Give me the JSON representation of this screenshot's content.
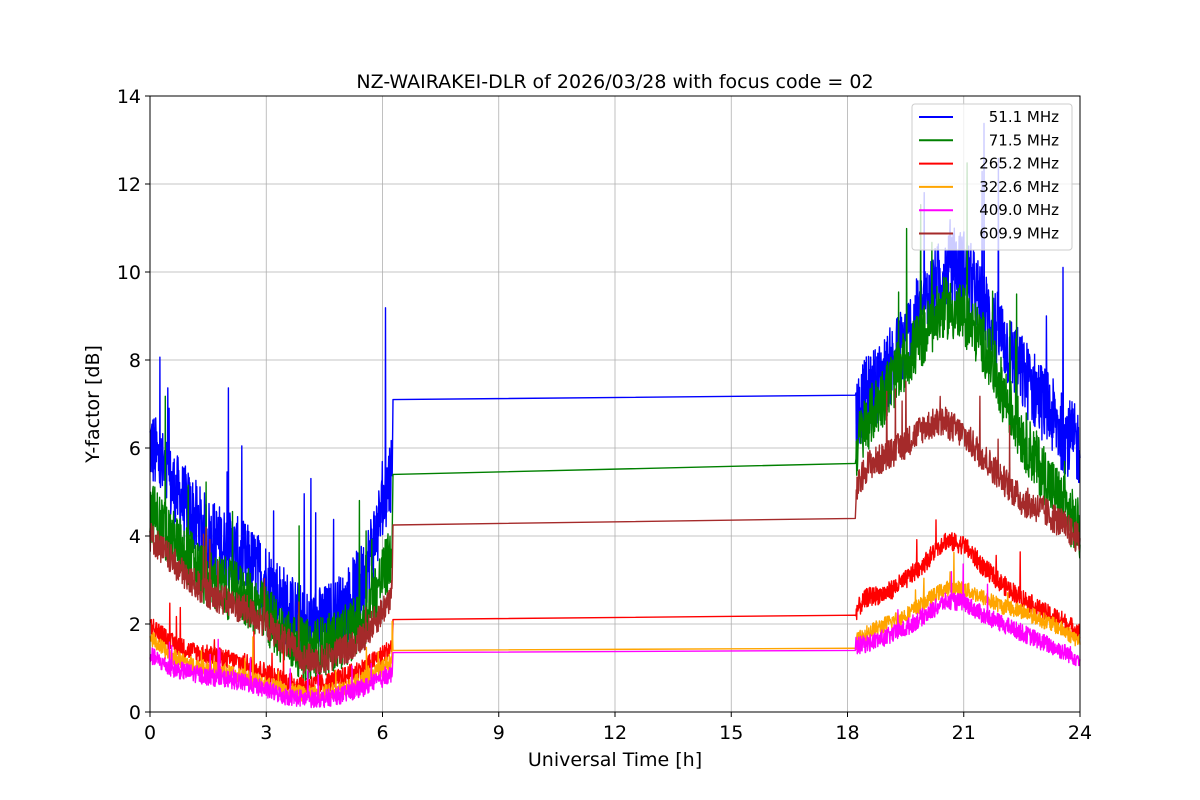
{
  "chart_data": {
    "type": "line",
    "title": "NZ-WAIRAKEI-DLR of 2026/03/28 with focus code = 02",
    "xlabel": "Universal Time [h]",
    "ylabel": "Y-factor [dB]",
    "xlim": [
      0,
      24
    ],
    "ylim": [
      0,
      14
    ],
    "xticks": [
      0,
      3,
      6,
      9,
      12,
      15,
      18,
      21,
      24
    ],
    "yticks": [
      0,
      2,
      4,
      6,
      8,
      10,
      12,
      14
    ],
    "grid": true,
    "legend_position": "top-right",
    "series": [
      {
        "name": "51.1 MHz",
        "label": " 51.1 MHz",
        "color": "#0000ff",
        "noise": 0.9,
        "points": [
          [
            0,
            6.1
          ],
          [
            0.5,
            5.2
          ],
          [
            1,
            4.6
          ],
          [
            1.5,
            4.0
          ],
          [
            2,
            3.7
          ],
          [
            2.5,
            3.4
          ],
          [
            3,
            3.0
          ],
          [
            3.5,
            2.4
          ],
          [
            4,
            1.9
          ],
          [
            4.5,
            2.0
          ],
          [
            5,
            2.3
          ],
          [
            5.5,
            3.0
          ],
          [
            6,
            4.6
          ],
          [
            6.25,
            5.6
          ],
          [
            6.27,
            7.1
          ],
          [
            18.2,
            7.2
          ],
          [
            18.22,
            6.8
          ],
          [
            18.5,
            7.2
          ],
          [
            19,
            7.7
          ],
          [
            19.5,
            8.5
          ],
          [
            20,
            9.3
          ],
          [
            20.5,
            10.0
          ],
          [
            21,
            10.1
          ],
          [
            21.5,
            9.2
          ],
          [
            22,
            8.5
          ],
          [
            22.5,
            7.7
          ],
          [
            23,
            7.1
          ],
          [
            23.5,
            6.4
          ],
          [
            24,
            6.0
          ]
        ]
      },
      {
        "name": "71.5 MHz",
        "label": " 71.5 MHz",
        "color": "#008000",
        "noise": 0.7,
        "points": [
          [
            0,
            4.6
          ],
          [
            0.5,
            4.0
          ],
          [
            1,
            3.5
          ],
          [
            1.5,
            3.0
          ],
          [
            2,
            2.8
          ],
          [
            2.5,
            2.6
          ],
          [
            3,
            2.2
          ],
          [
            3.5,
            1.7
          ],
          [
            4,
            1.4
          ],
          [
            4.5,
            1.5
          ],
          [
            5,
            1.7
          ],
          [
            5.5,
            2.1
          ],
          [
            6,
            3.1
          ],
          [
            6.25,
            3.6
          ],
          [
            6.27,
            5.4
          ],
          [
            18.2,
            5.65
          ],
          [
            18.22,
            6.0
          ],
          [
            18.5,
            6.6
          ],
          [
            19,
            7.3
          ],
          [
            19.5,
            8.0
          ],
          [
            20,
            8.6
          ],
          [
            20.5,
            9.2
          ],
          [
            21,
            9.0
          ],
          [
            21.5,
            8.4
          ],
          [
            22,
            7.3
          ],
          [
            22.5,
            6.3
          ],
          [
            23,
            5.5
          ],
          [
            23.5,
            4.8
          ],
          [
            24,
            4.1
          ]
        ]
      },
      {
        "name": "265.2 MHz",
        "label": "265.2 MHz",
        "color": "#ff0000",
        "noise": 0.22,
        "points": [
          [
            0,
            2.0
          ],
          [
            0.5,
            1.6
          ],
          [
            1,
            1.4
          ],
          [
            1.5,
            1.3
          ],
          [
            2,
            1.2
          ],
          [
            2.5,
            1.1
          ],
          [
            3,
            0.9
          ],
          [
            3.5,
            0.7
          ],
          [
            4,
            0.6
          ],
          [
            4.5,
            0.65
          ],
          [
            5,
            0.8
          ],
          [
            5.5,
            1.0
          ],
          [
            6,
            1.3
          ],
          [
            6.25,
            1.5
          ],
          [
            6.27,
            2.1
          ],
          [
            18.2,
            2.2
          ],
          [
            18.22,
            2.3
          ],
          [
            18.5,
            2.6
          ],
          [
            19,
            2.7
          ],
          [
            19.5,
            3.0
          ],
          [
            20,
            3.4
          ],
          [
            20.5,
            3.9
          ],
          [
            21,
            3.8
          ],
          [
            21.5,
            3.3
          ],
          [
            22,
            2.9
          ],
          [
            22.5,
            2.6
          ],
          [
            23,
            2.3
          ],
          [
            23.5,
            2.1
          ],
          [
            24,
            1.8
          ]
        ]
      },
      {
        "name": "322.6 MHz",
        "label": "322.6 MHz",
        "color": "#ffa500",
        "noise": 0.18,
        "points": [
          [
            0,
            1.7
          ],
          [
            0.5,
            1.3
          ],
          [
            1,
            1.1
          ],
          [
            1.5,
            1.0
          ],
          [
            2,
            0.9
          ],
          [
            2.5,
            0.8
          ],
          [
            3,
            0.65
          ],
          [
            3.5,
            0.5
          ],
          [
            4,
            0.4
          ],
          [
            4.5,
            0.45
          ],
          [
            5,
            0.55
          ],
          [
            5.5,
            0.75
          ],
          [
            6,
            1.0
          ],
          [
            6.25,
            1.2
          ],
          [
            6.27,
            1.4
          ],
          [
            18.2,
            1.45
          ],
          [
            18.22,
            1.6
          ],
          [
            18.5,
            1.8
          ],
          [
            19,
            2.0
          ],
          [
            19.5,
            2.2
          ],
          [
            20,
            2.5
          ],
          [
            20.5,
            2.8
          ],
          [
            21,
            2.8
          ],
          [
            21.5,
            2.6
          ],
          [
            22,
            2.4
          ],
          [
            22.5,
            2.3
          ],
          [
            23,
            2.1
          ],
          [
            23.5,
            1.9
          ],
          [
            24,
            1.6
          ]
        ]
      },
      {
        "name": "409.0 MHz",
        "label": "409.0 MHz",
        "color": "#ff00ff",
        "noise": 0.2,
        "points": [
          [
            0,
            1.3
          ],
          [
            0.5,
            1.0
          ],
          [
            1,
            0.9
          ],
          [
            1.5,
            0.8
          ],
          [
            2,
            0.75
          ],
          [
            2.5,
            0.65
          ],
          [
            3,
            0.5
          ],
          [
            3.5,
            0.35
          ],
          [
            4,
            0.3
          ],
          [
            4.5,
            0.3
          ],
          [
            5,
            0.4
          ],
          [
            5.5,
            0.55
          ],
          [
            6,
            0.75
          ],
          [
            6.25,
            0.85
          ],
          [
            6.27,
            1.35
          ],
          [
            18.2,
            1.4
          ],
          [
            18.22,
            1.5
          ],
          [
            18.5,
            1.55
          ],
          [
            19,
            1.7
          ],
          [
            19.5,
            1.9
          ],
          [
            20,
            2.2
          ],
          [
            20.5,
            2.5
          ],
          [
            21,
            2.5
          ],
          [
            21.5,
            2.2
          ],
          [
            22,
            2.0
          ],
          [
            22.5,
            1.8
          ],
          [
            23,
            1.6
          ],
          [
            23.5,
            1.4
          ],
          [
            24,
            1.2
          ]
        ]
      },
      {
        "name": "609.9 MHz",
        "label": "609.9 MHz",
        "color": "#a52a2a",
        "noise": 0.35,
        "points": [
          [
            0,
            4.0
          ],
          [
            0.5,
            3.5
          ],
          [
            1,
            3.0
          ],
          [
            1.5,
            2.7
          ],
          [
            2,
            2.5
          ],
          [
            2.5,
            2.3
          ],
          [
            3,
            2.0
          ],
          [
            3.5,
            1.6
          ],
          [
            4,
            1.2
          ],
          [
            4.5,
            1.2
          ],
          [
            5,
            1.4
          ],
          [
            5.5,
            1.7
          ],
          [
            6,
            2.3
          ],
          [
            6.25,
            2.7
          ],
          [
            6.27,
            4.25
          ],
          [
            18.2,
            4.4
          ],
          [
            18.22,
            5.0
          ],
          [
            18.5,
            5.6
          ],
          [
            19,
            5.8
          ],
          [
            19.5,
            6.1
          ],
          [
            20,
            6.5
          ],
          [
            20.5,
            6.6
          ],
          [
            21,
            6.3
          ],
          [
            21.5,
            5.8
          ],
          [
            22,
            5.3
          ],
          [
            22.5,
            4.8
          ],
          [
            23,
            4.6
          ],
          [
            23.5,
            4.3
          ],
          [
            24,
            3.9
          ]
        ]
      }
    ]
  }
}
